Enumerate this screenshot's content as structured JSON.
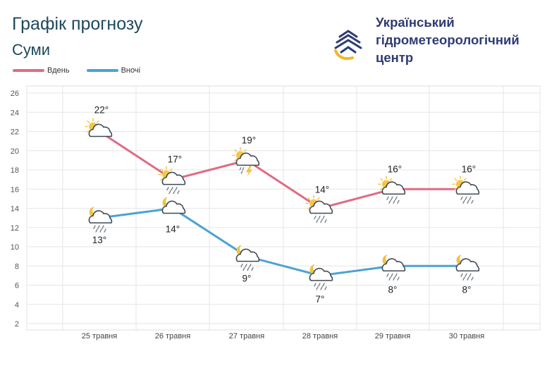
{
  "header": {
    "title": "Графік прогнозу",
    "city": "Суми",
    "org_line1": "Український",
    "org_line2": "гідрометеорологічний",
    "org_line3": "центр"
  },
  "colors": {
    "day": "#e06b86",
    "night": "#4aa3d3",
    "title": "#1d4a5c",
    "org": "#2f3b73"
  },
  "chart_data": {
    "type": "line",
    "categories": [
      "25 травня",
      "26 травня",
      "27 травня",
      "28 травня",
      "29 травня",
      "30 травня"
    ],
    "ylim": [
      2,
      26
    ],
    "yticks": [
      2,
      4,
      6,
      8,
      10,
      12,
      14,
      16,
      18,
      20,
      22,
      24,
      26
    ],
    "grid": true,
    "legend_position": "top-left",
    "series": [
      {
        "name": "Вдень",
        "color": "#e06b86",
        "values": [
          22,
          17,
          19,
          14,
          16,
          16
        ],
        "labels": [
          "22°",
          "17°",
          "19°",
          "14°",
          "16°",
          "16°"
        ],
        "icons": [
          "sun-cloud-icon",
          "sun-cloud-rain-icon",
          "sun-cloud-thunder-icon",
          "sun-cloud-rain-icon",
          "sun-cloud-rain-icon",
          "sun-cloud-rain-icon"
        ]
      },
      {
        "name": "Вночі",
        "color": "#4aa3d3",
        "values": [
          13,
          14,
          9,
          7,
          8,
          8
        ],
        "labels": [
          "13°",
          "14°",
          "9°",
          "7°",
          "8°",
          "8°"
        ],
        "icons": [
          "moon-cloud-rain-icon",
          "moon-cloud-icon",
          "moon-cloud-rain-icon",
          "moon-cloud-rain-icon",
          "moon-cloud-rain-icon",
          "moon-cloud-rain-icon"
        ]
      }
    ]
  }
}
